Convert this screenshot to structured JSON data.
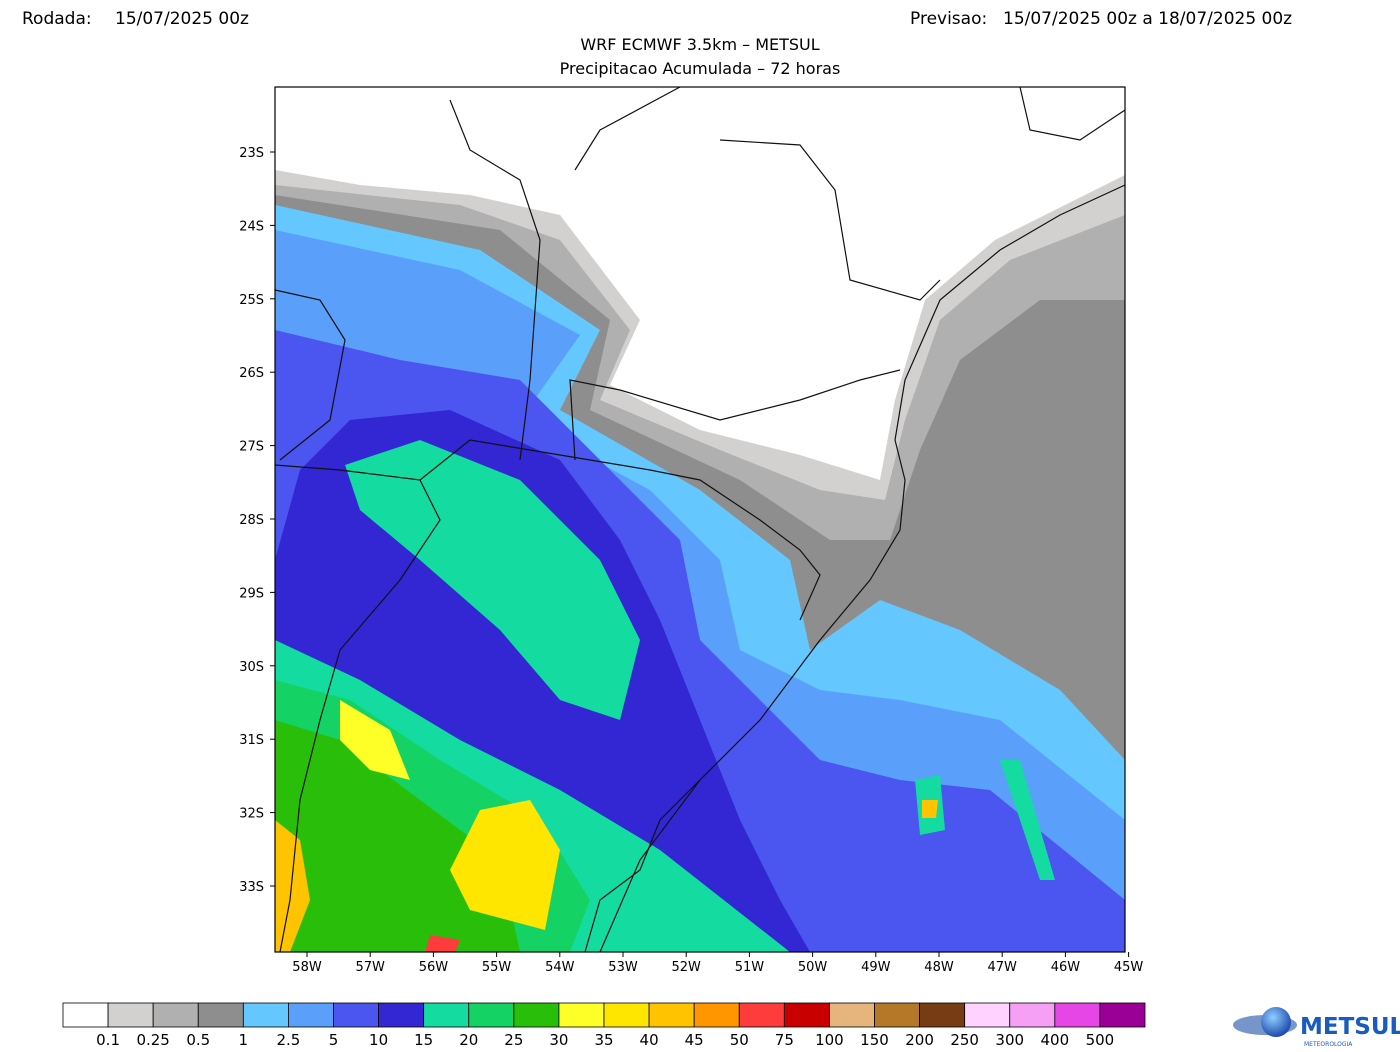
{
  "header": {
    "run_label": "Rodada:",
    "run_value": "15/07/2025 00z",
    "forecast_label": "Previsao:",
    "forecast_value": "15/07/2025 00z a 18/07/2025 00z"
  },
  "title": "WRF ECMWF 3.5km – METSUL",
  "subtitle": "Precipitacao Acumulada – 72 horas",
  "map": {
    "lat_labels": [
      "23S",
      "24S",
      "25S",
      "26S",
      "27S",
      "28S",
      "29S",
      "30S",
      "31S",
      "32S",
      "33S"
    ],
    "lon_labels": [
      "58W",
      "57W",
      "56W",
      "55W",
      "54W",
      "53W",
      "52W",
      "51W",
      "50W",
      "49W",
      "48W",
      "47W",
      "46W",
      "45W"
    ]
  },
  "legend": {
    "colors": [
      "#ffffff",
      "#d3d0d0",
      "#b0b0b0",
      "#8e8e8e",
      "#64c8ff",
      "#5aa0fa",
      "#4b55f0",
      "#3227d2",
      "#14dca0",
      "#14d264",
      "#28be0a",
      "#ffff28",
      "#ffe600",
      "#ffc300",
      "#ff9600",
      "#ff3c3c",
      "#c80000",
      "#e6b47d",
      "#b47828",
      "#783c14",
      "#ffd2ff",
      "#f5a0f5",
      "#e646e6",
      "#9b0096"
    ],
    "labels": [
      "0.1",
      "0.25",
      "0.5",
      "1",
      "2.5",
      "5",
      "10",
      "15",
      "20",
      "25",
      "30",
      "35",
      "40",
      "45",
      "50",
      "75",
      "100",
      "150",
      "200",
      "250",
      "300",
      "400",
      "500"
    ]
  },
  "logo": {
    "name": "METSUL",
    "tagline": "METEOROLOGIA"
  }
}
